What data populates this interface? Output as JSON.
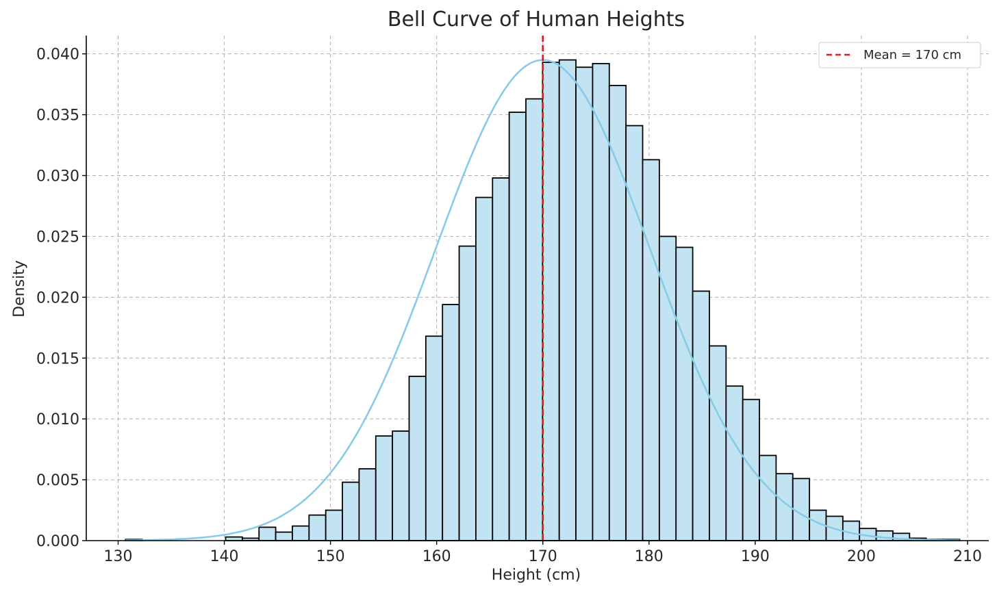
{
  "chart_data": {
    "type": "bar",
    "subtype": "histogram",
    "title": "Bell Curve of Human Heights",
    "xlabel": "Height (cm)",
    "ylabel": "Density",
    "xlim": [
      127,
      212
    ],
    "ylim": [
      0,
      0.0415
    ],
    "xticks": [
      130,
      140,
      150,
      160,
      170,
      180,
      190,
      200,
      210
    ],
    "yticks": [
      0.0,
      0.005,
      0.01,
      0.015,
      0.02,
      0.025,
      0.03,
      0.035,
      0.04
    ],
    "ytick_labels": [
      "0.000",
      "0.005",
      "0.010",
      "0.015",
      "0.020",
      "0.025",
      "0.030",
      "0.035",
      "0.040"
    ],
    "grid": true,
    "legend_position": "top-right",
    "bin_start": 130.7,
    "bin_width": 1.571,
    "densities": [
      0.0001,
      0.0,
      0.0,
      0.0,
      0.0,
      0.0,
      0.0003,
      0.0002,
      0.0011,
      0.0007,
      0.0012,
      0.0021,
      0.0025,
      0.0048,
      0.0059,
      0.0086,
      0.009,
      0.0135,
      0.0168,
      0.0194,
      0.0242,
      0.0282,
      0.0298,
      0.0352,
      0.0363,
      0.0393,
      0.0395,
      0.0389,
      0.0392,
      0.0374,
      0.0341,
      0.0313,
      0.025,
      0.0241,
      0.0205,
      0.016,
      0.0127,
      0.0116,
      0.007,
      0.0055,
      0.0051,
      0.0025,
      0.002,
      0.0016,
      0.001,
      0.0008,
      0.0006,
      0.0002,
      0.0001,
      0.0001
    ],
    "kde_mean": 170,
    "kde_std": 10.1,
    "mean_line": {
      "x": 170,
      "label": "Mean = 170 cm",
      "color": "#e41a1c"
    },
    "colors": {
      "bar_fill": "#c2e3f2",
      "bar_edge": "#000000",
      "kde": "#87cbe8",
      "grid": "#b0b0b0",
      "text": "#262626"
    }
  }
}
